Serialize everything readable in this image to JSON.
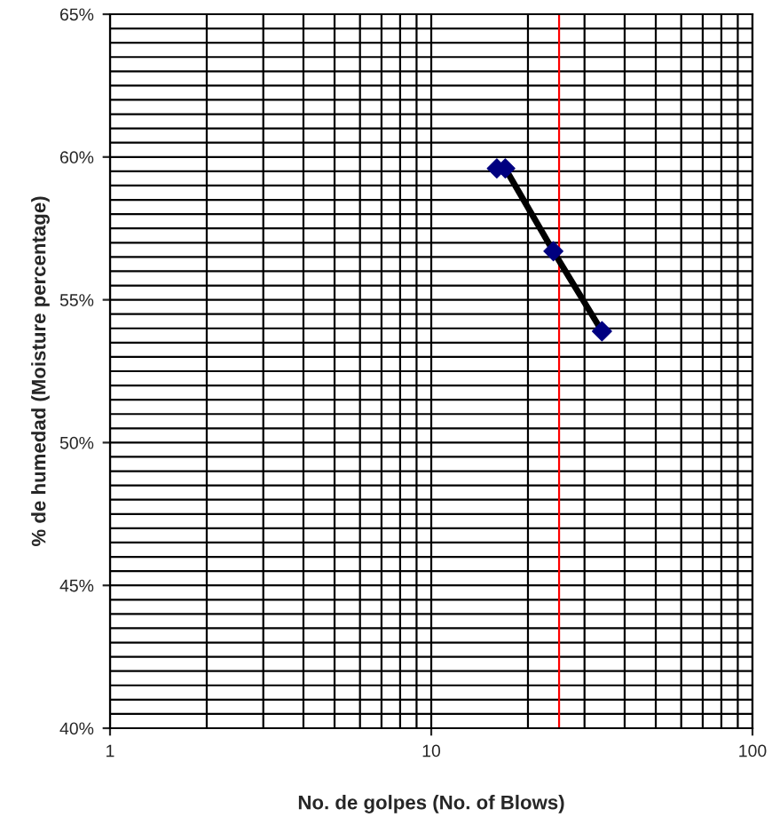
{
  "chart_data": {
    "type": "scatter",
    "xlabel": "No. de golpes (No. of Blows)",
    "ylabel": "% de humedad (Moisture percentage)",
    "log": "x",
    "xlim": [
      1,
      100
    ],
    "xticks": [
      1,
      10,
      100
    ],
    "ylim": [
      40,
      65
    ],
    "yticks": [
      {
        "value": 40,
        "label": "40%"
      },
      {
        "value": 45,
        "label": "45%"
      },
      {
        "value": 50,
        "label": "50%"
      },
      {
        "value": 55,
        "label": "55%"
      },
      {
        "value": 60,
        "label": "60%"
      },
      {
        "value": 65,
        "label": "65%"
      }
    ],
    "grid": true,
    "legend": false,
    "series": [
      {
        "type": "line",
        "color": "#000000",
        "marker": "none",
        "x": [
          16,
          17,
          24,
          34
        ],
        "values": [
          59.6,
          59.6,
          56.7,
          53.9
        ]
      },
      {
        "color": "#000080",
        "marker": "diamond",
        "x": [
          16,
          17,
          24,
          34
        ],
        "values": [
          59.6,
          59.6,
          56.7,
          53.9
        ]
      }
    ],
    "ref_lines": [
      {
        "axis": "x",
        "value": 25,
        "color": "#ff0000"
      }
    ]
  }
}
